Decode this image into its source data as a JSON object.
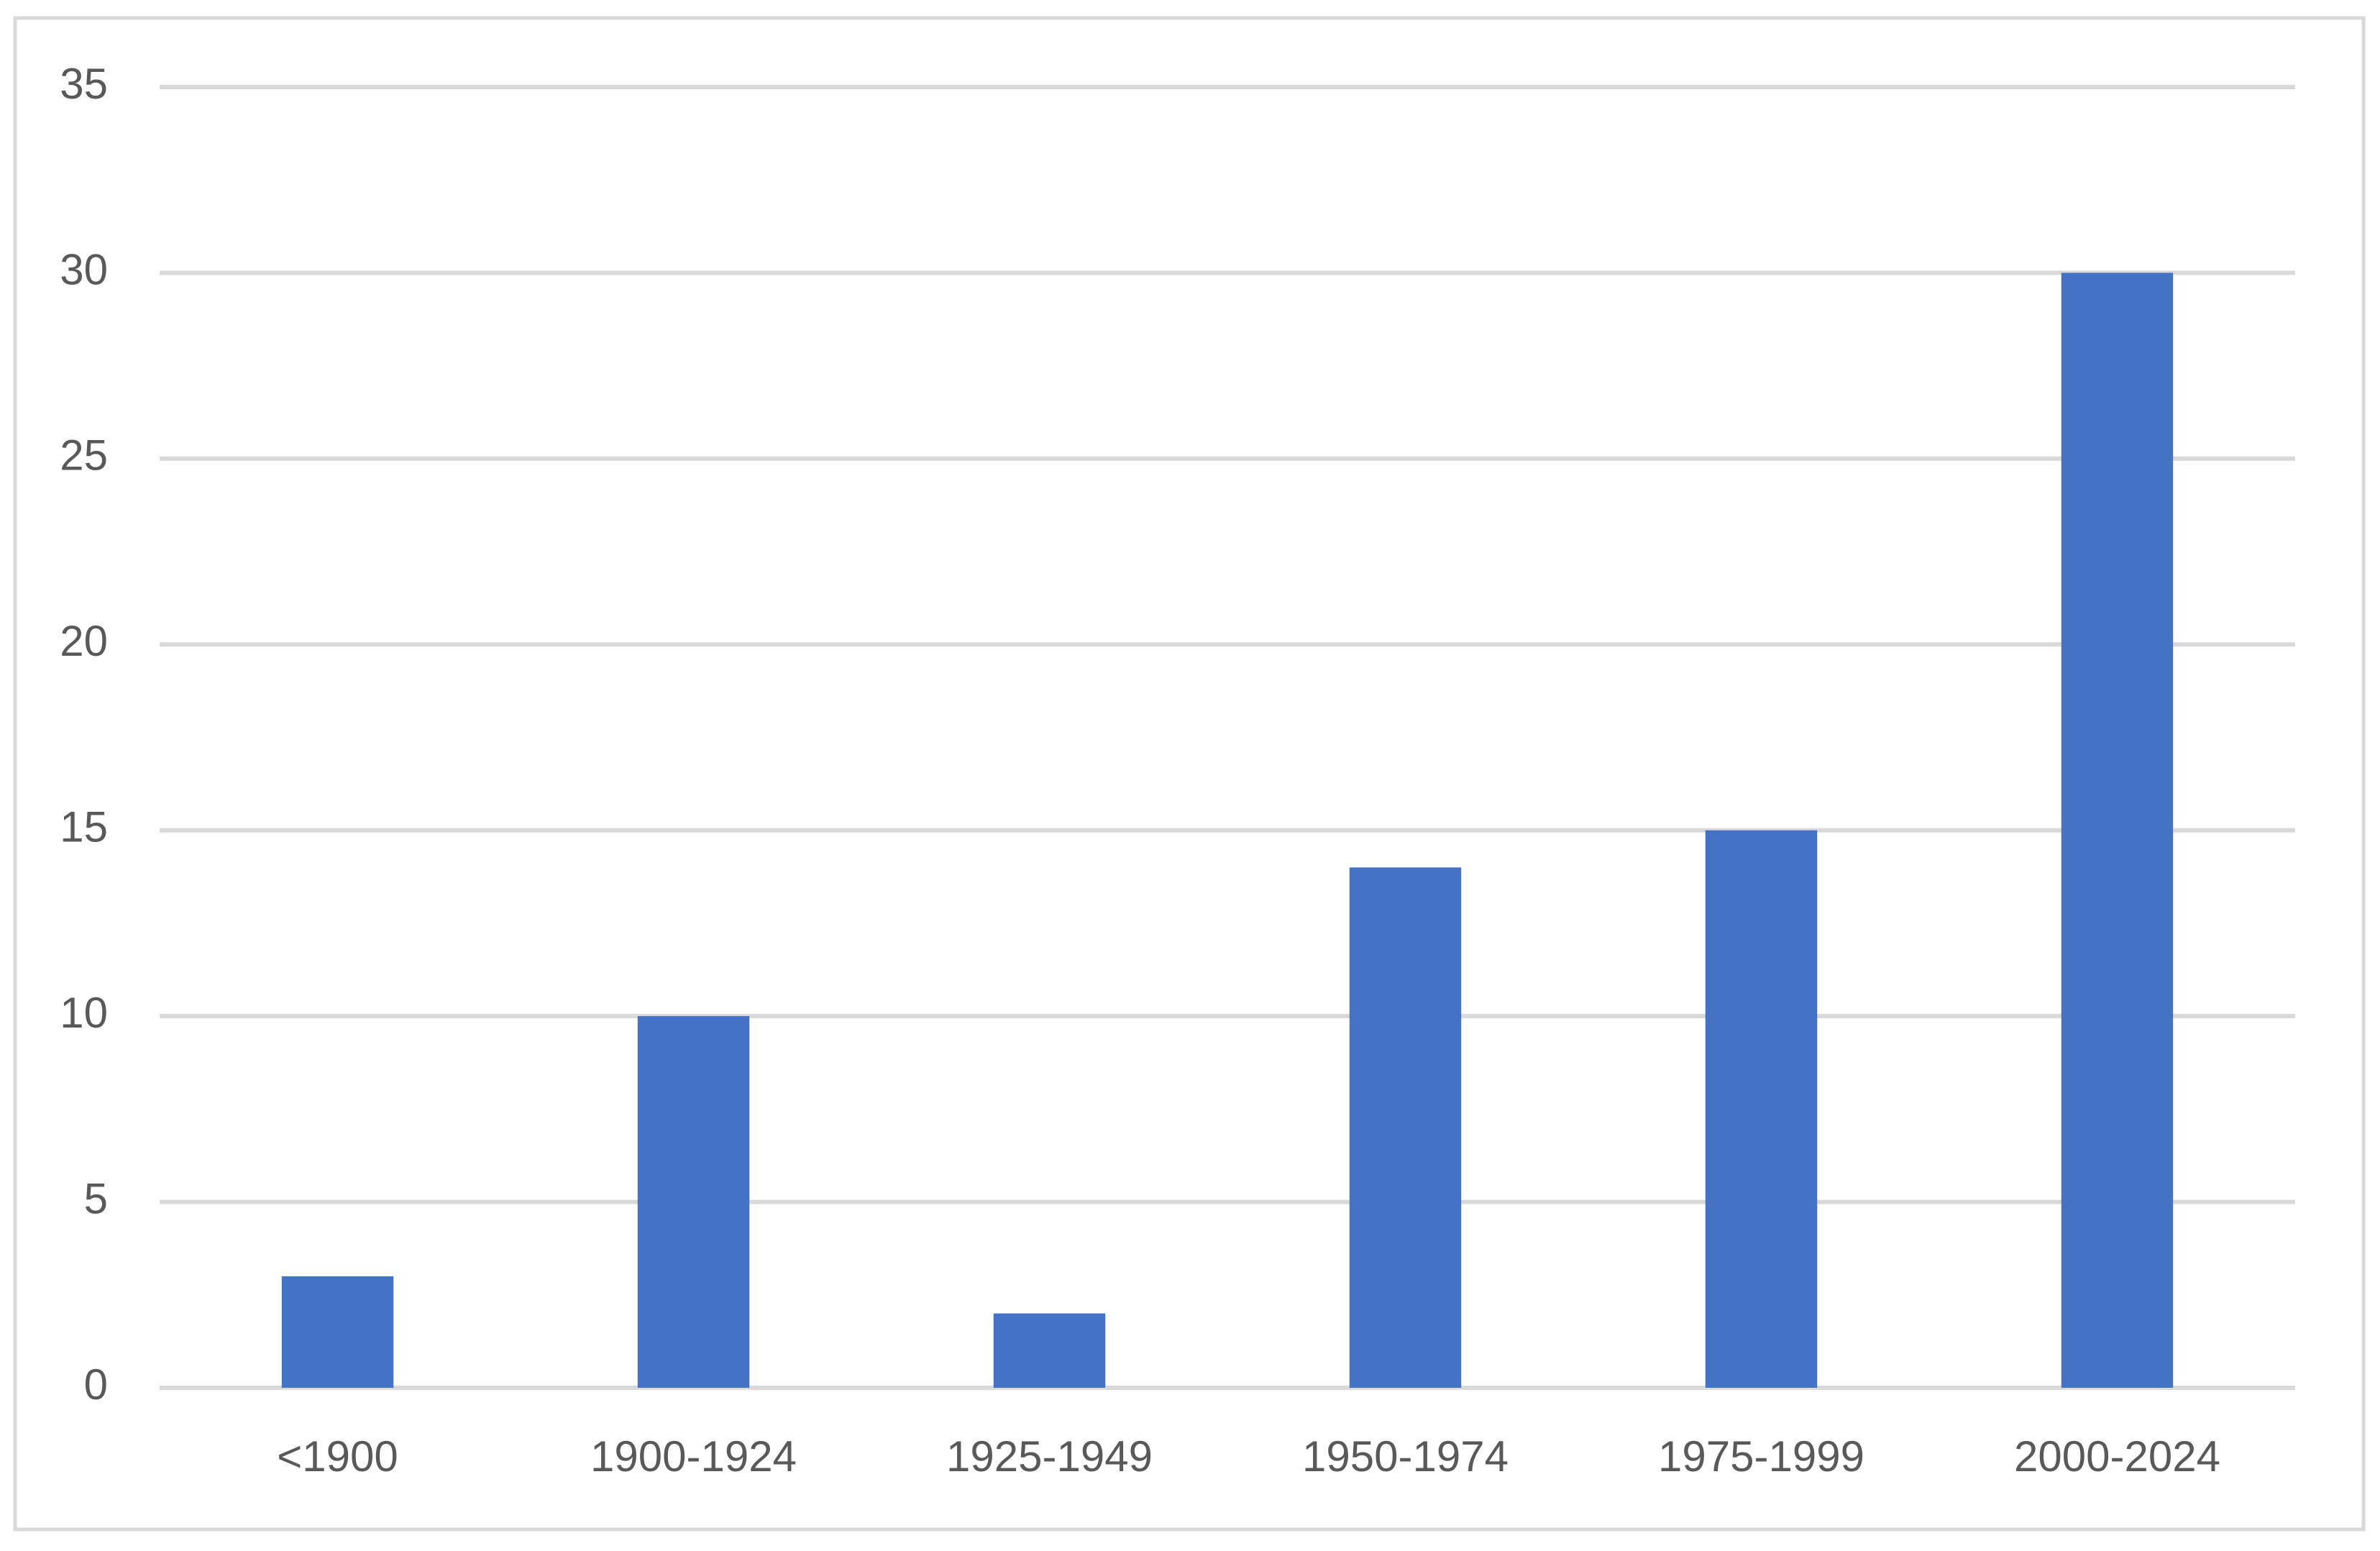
{
  "chart_data": {
    "type": "bar",
    "categories": [
      "<1900",
      "1900-1924",
      "1925-1949",
      "1950-1974",
      "1975-1999",
      "2000-2024"
    ],
    "values": [
      3,
      10,
      2,
      14,
      15,
      30
    ],
    "color": "#4472c4",
    "ylim": [
      0,
      35
    ],
    "yticks": [
      0,
      5,
      10,
      15,
      20,
      25,
      30,
      35
    ],
    "grid": true
  }
}
